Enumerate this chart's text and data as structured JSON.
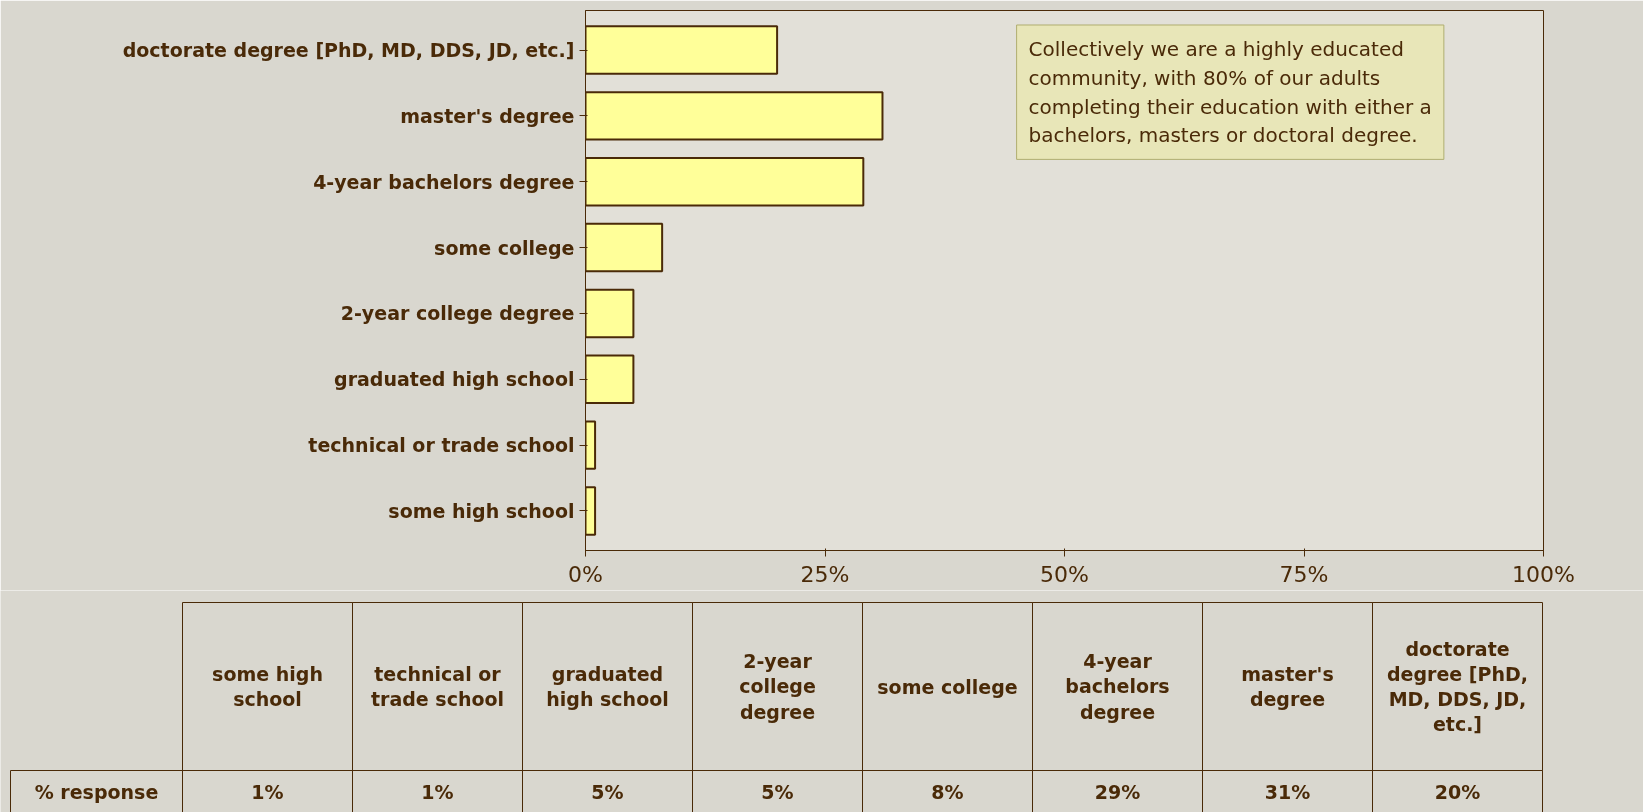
{
  "chart_data": [
    {
      "type": "bar",
      "orientation": "horizontal",
      "categories": [
        "doctorate degree [PhD, MD, DDS, JD, etc.]",
        "master's degree",
        "4-year bachelors degree",
        "some college",
        "2-year college degree",
        "graduated high school",
        "technical or trade school",
        "some high school"
      ],
      "values": [
        20,
        31,
        29,
        8,
        5,
        5,
        1,
        1
      ],
      "color": "#ffff99",
      "xlim": [
        0,
        100
      ],
      "xticks": [
        {
          "value": 0,
          "label": "0%"
        },
        {
          "value": 25,
          "label": "25%"
        },
        {
          "value": 50,
          "label": "50%"
        },
        {
          "value": 75,
          "label": "75%"
        },
        {
          "value": 100,
          "label": "100%"
        }
      ],
      "annotations": [
        "Collectively we are a highly educated community, with 80% of our adults completing their education with either a bachelors, masters or doctoral degree."
      ],
      "grid": false
    },
    {
      "type": "other",
      "categories": [
        "some high school",
        "technical or trade school",
        "graduated high school",
        "2-year college degree",
        "some college",
        "4-year bachelors degree",
        "master's degree",
        "doctorate degree [PhD, MD, DDS, JD, etc.]"
      ],
      "series": [
        {
          "name": "% response",
          "values": [
            1,
            1,
            5,
            5,
            8,
            29,
            31,
            20
          ],
          "value_labels": [
            "1%",
            "1%",
            "5%",
            "5%",
            "8%",
            "29%",
            "31%",
            "20%"
          ]
        }
      ]
    }
  ]
}
